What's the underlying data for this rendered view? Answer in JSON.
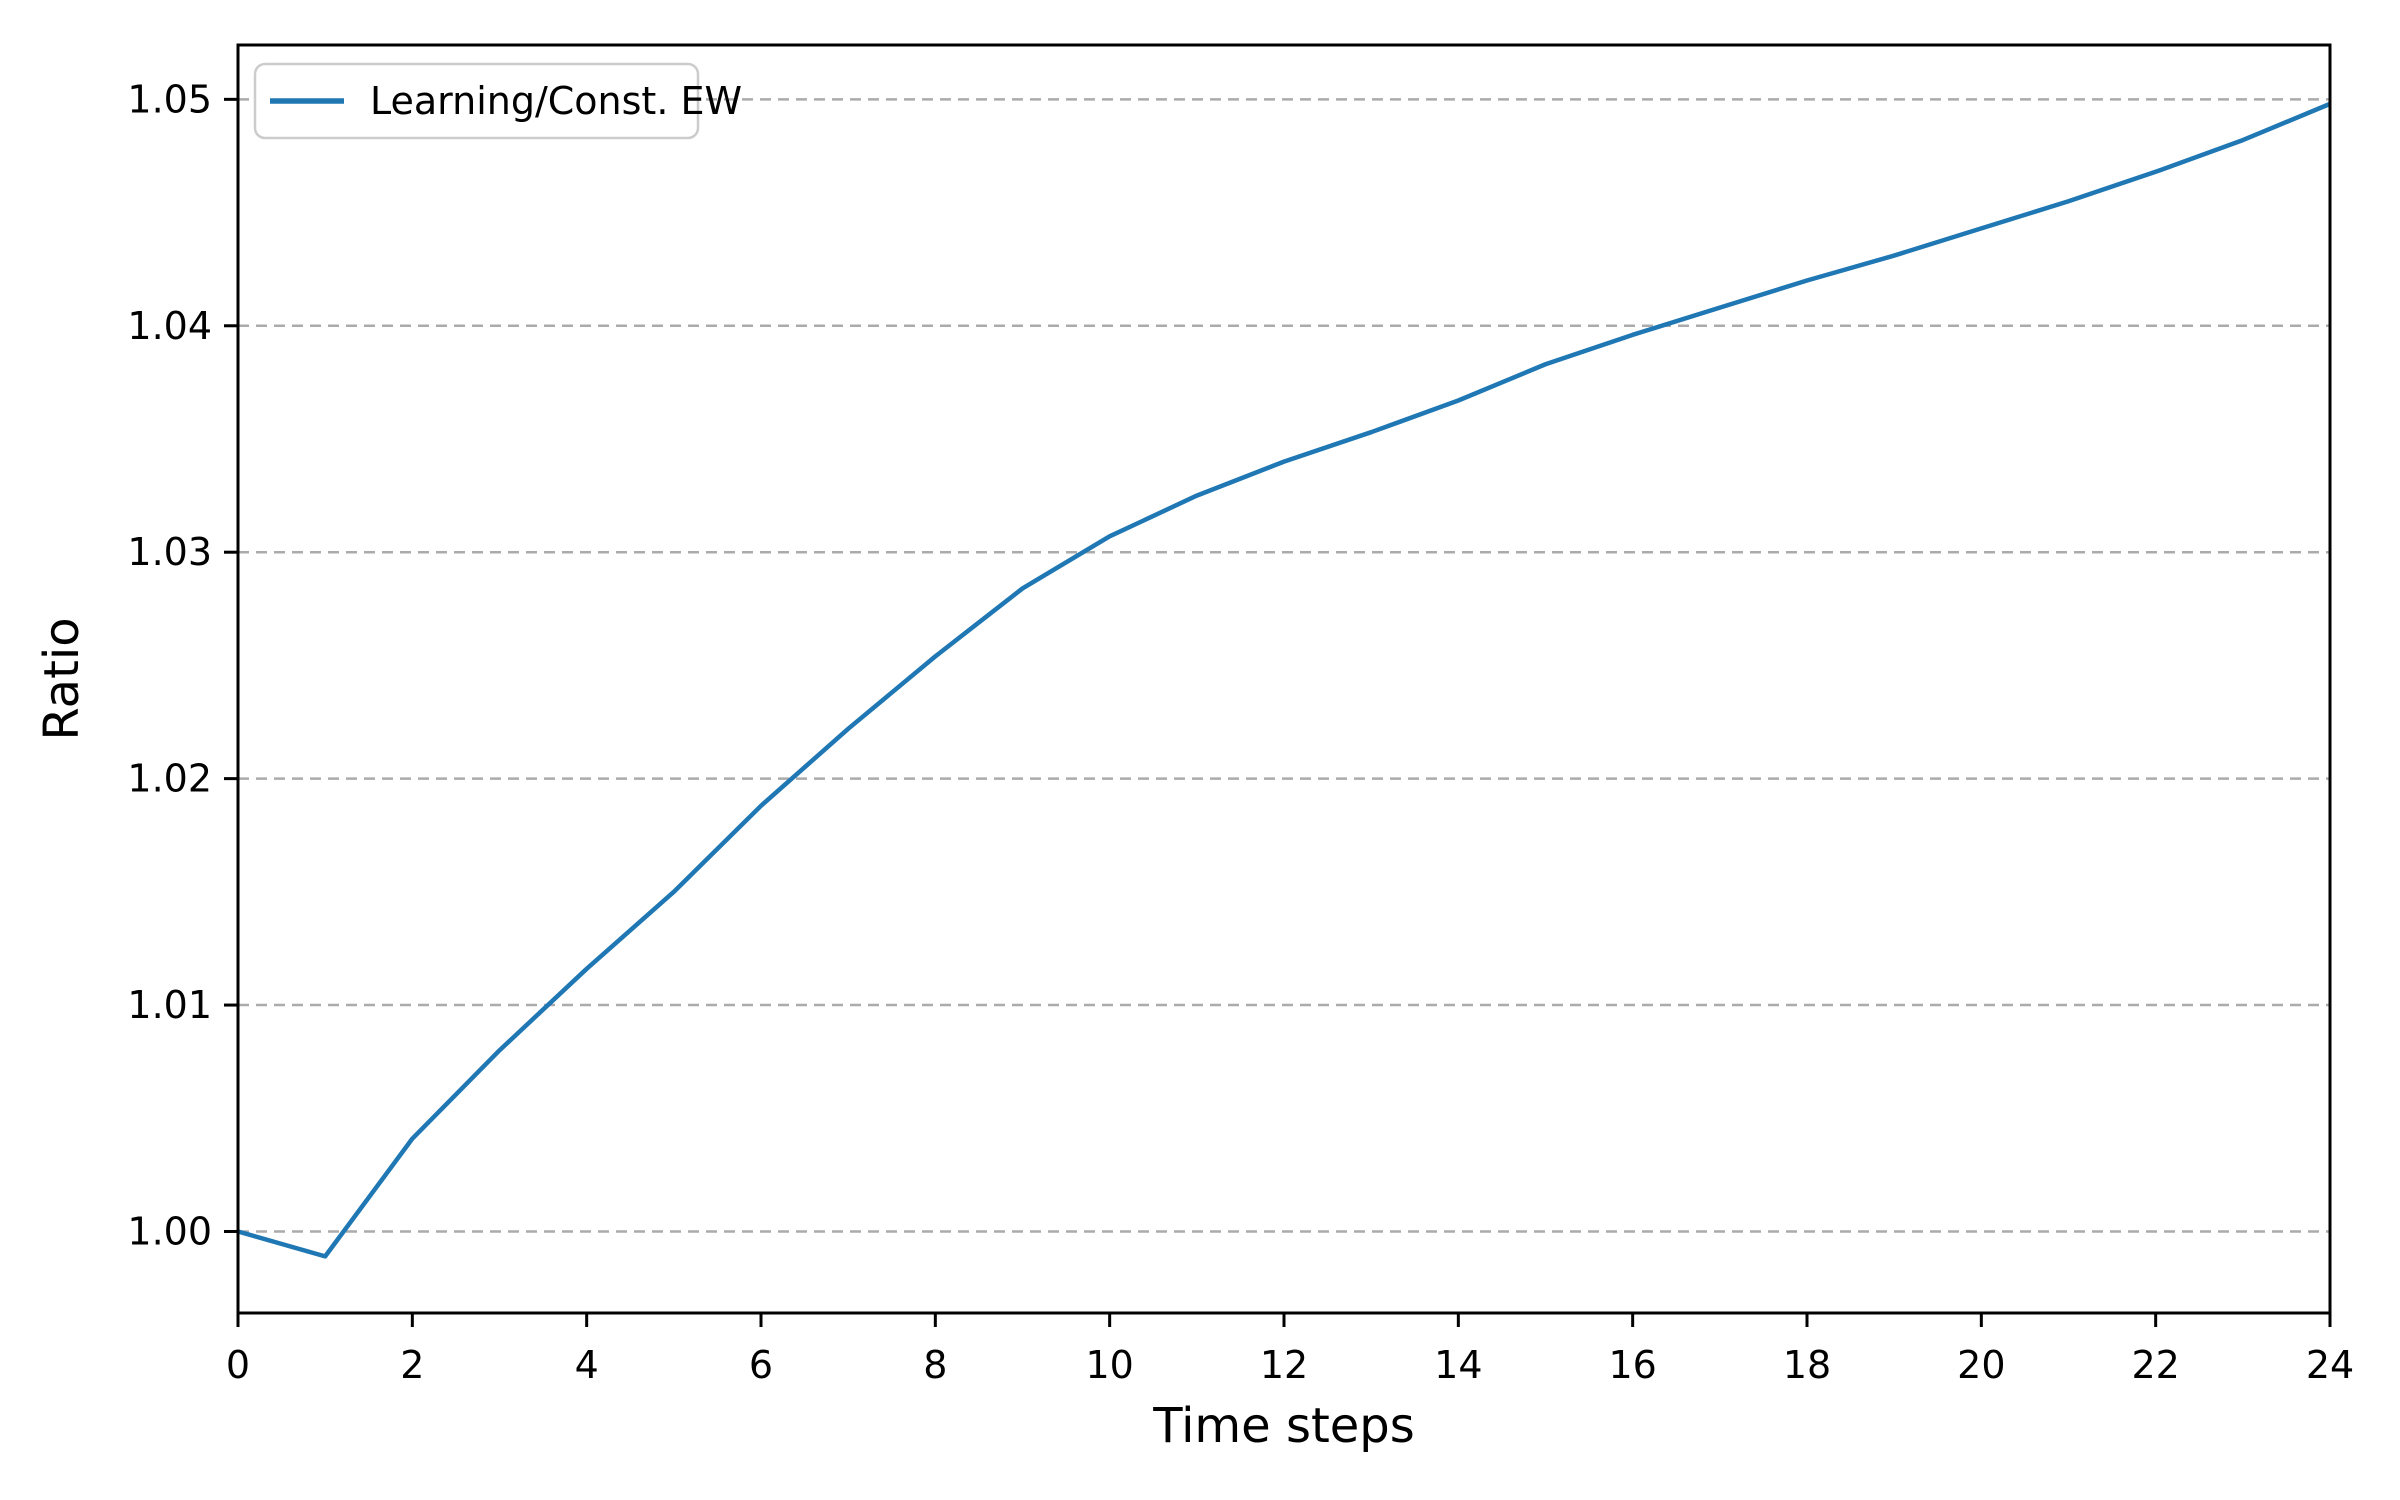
{
  "figure": {
    "background": "#ffffff"
  },
  "chart_data": {
    "type": "line",
    "title": "",
    "xlabel": "Time steps",
    "ylabel": "Ratio",
    "x": [
      0,
      1,
      2,
      3,
      4,
      5,
      6,
      7,
      8,
      9,
      10,
      11,
      12,
      13,
      14,
      15,
      16,
      17,
      18,
      19,
      20,
      21,
      22,
      23,
      24
    ],
    "series": [
      {
        "name": "Learning/Const. EW",
        "color": "#1f77b4",
        "values": [
          1.0,
          0.9989,
          1.0041,
          1.008,
          1.0116,
          1.015,
          1.0188,
          1.0222,
          1.0254,
          1.0284,
          1.0307,
          1.0325,
          1.034,
          1.0353,
          1.0367,
          1.0383,
          1.0396,
          1.0408,
          1.042,
          1.0431,
          1.0443,
          1.0455,
          1.0468,
          1.0482,
          1.0498
        ]
      }
    ],
    "xlim": [
      0,
      24
    ],
    "ylim": [
      0.9964,
      1.0524
    ],
    "xticks": [
      0,
      2,
      4,
      6,
      8,
      10,
      12,
      14,
      16,
      18,
      20,
      22,
      24
    ],
    "xtick_labels": [
      "0",
      "2",
      "4",
      "6",
      "8",
      "10",
      "12",
      "14",
      "16",
      "18",
      "20",
      "22",
      "24"
    ],
    "yticks": [
      1.0,
      1.01,
      1.02,
      1.03,
      1.04,
      1.05
    ],
    "ytick_labels": [
      "1.00",
      "1.01",
      "1.02",
      "1.03",
      "1.04",
      "1.05"
    ],
    "grid": "horizontal-dashed",
    "legend_position": "upper-left"
  },
  "colors": {
    "line": "#1f77b4",
    "grid": "#ababab",
    "spine": "#000000",
    "text": "#000000",
    "legend_border": "#cccccc",
    "legend_background": "#ffffff"
  }
}
